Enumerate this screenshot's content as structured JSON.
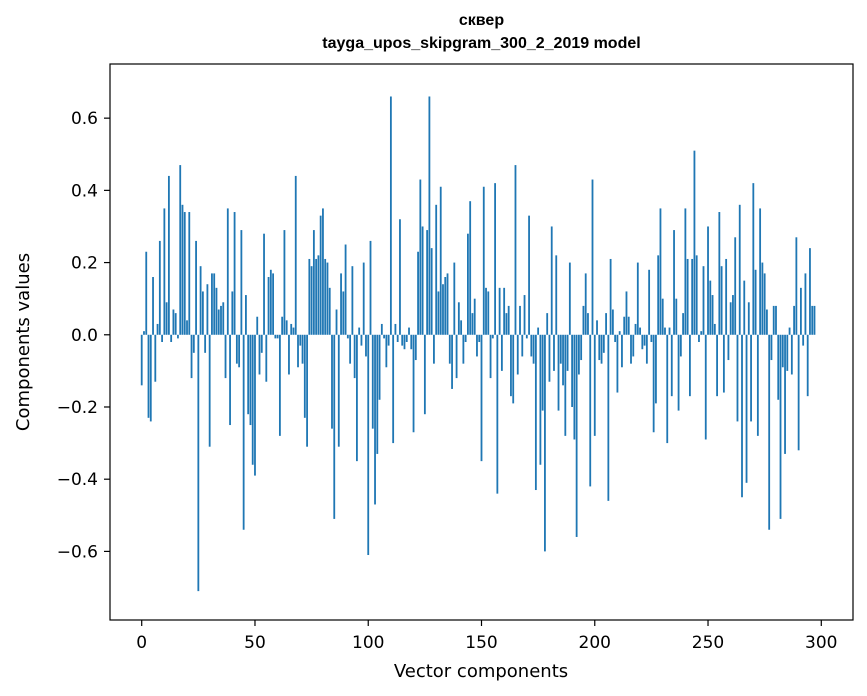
{
  "chart_data": {
    "type": "bar",
    "title": "сквер",
    "subtitle": "tayga_upos_skipgram_300_2_2019 model",
    "xlabel": "Vector components",
    "ylabel": "Components values",
    "xlim": [
      -14,
      314
    ],
    "ylim": [
      -0.79,
      0.75
    ],
    "xticks": [
      0,
      50,
      100,
      150,
      200,
      250,
      300
    ],
    "yticks": [
      -0.6,
      -0.4,
      -0.2,
      0.0,
      0.2,
      0.4,
      0.6
    ],
    "xtick_labels": [
      "0",
      "50",
      "100",
      "150",
      "200",
      "250",
      "300"
    ],
    "ytick_labels": [
      "−0.6",
      "−0.4",
      "−0.2",
      "0.0",
      "0.2",
      "0.4",
      "0.6"
    ],
    "grid": false,
    "legend": "none",
    "bar_color": "#1f77b4",
    "series": [
      {
        "values": [
          -0.14,
          0.01,
          0.23,
          -0.23,
          -0.24,
          0.16,
          -0.13,
          0.03,
          0.26,
          -0.02,
          0.35,
          0.09,
          0.44,
          -0.02,
          0.07,
          0.06,
          -0.01,
          0.47,
          0.36,
          0.34,
          0.04,
          0.34,
          -0.12,
          -0.05,
          0.26,
          -0.71,
          0.19,
          0.12,
          -0.05,
          0.14,
          -0.31,
          0.17,
          0.17,
          0.13,
          0.07,
          0.08,
          0.09,
          -0.12,
          0.35,
          -0.25,
          0.12,
          0.34,
          -0.08,
          -0.09,
          0.29,
          -0.54,
          0.11,
          -0.22,
          -0.25,
          -0.36,
          -0.39,
          0.05,
          -0.11,
          -0.05,
          0.28,
          -0.13,
          0.16,
          0.18,
          0.17,
          -0.01,
          -0.01,
          -0.28,
          0.05,
          0.29,
          0.04,
          -0.11,
          0.03,
          0.02,
          0.44,
          -0.09,
          -0.03,
          -0.08,
          -0.23,
          -0.31,
          0.21,
          0.19,
          0.29,
          0.21,
          0.22,
          0.33,
          0.35,
          0.21,
          0.2,
          0.13,
          -0.26,
          -0.51,
          0.07,
          -0.31,
          0.17,
          0.12,
          0.25,
          -0.01,
          -0.08,
          0.19,
          -0.12,
          -0.35,
          0.02,
          -0.03,
          0.2,
          -0.06,
          -0.61,
          0.26,
          -0.26,
          -0.47,
          -0.33,
          -0.18,
          0.03,
          -0.01,
          -0.09,
          -0.03,
          0.66,
          -0.3,
          0.03,
          -0.02,
          0.32,
          -0.03,
          -0.04,
          -0.02,
          0.02,
          -0.04,
          -0.27,
          -0.07,
          0.23,
          0.43,
          0.3,
          -0.22,
          0.29,
          0.66,
          0.24,
          -0.08,
          0.36,
          0.12,
          0.41,
          0.14,
          0.16,
          0.17,
          -0.08,
          -0.15,
          0.2,
          -0.12,
          0.09,
          0.04,
          -0.08,
          -0.02,
          0.28,
          0.37,
          0.06,
          0.1,
          -0.06,
          -0.02,
          -0.35,
          0.41,
          0.13,
          0.12,
          -0.12,
          -0.01,
          0.42,
          -0.44,
          0.13,
          -0.1,
          0.13,
          0.06,
          0.08,
          -0.17,
          -0.19,
          0.47,
          -0.11,
          0.08,
          -0.06,
          0.11,
          -0.01,
          0.33,
          -0.06,
          -0.08,
          -0.43,
          0.02,
          -0.36,
          -0.21,
          -0.6,
          0.06,
          -0.13,
          0.3,
          -0.1,
          0.22,
          -0.21,
          -0.08,
          -0.14,
          -0.28,
          -0.1,
          0.2,
          -0.2,
          -0.29,
          -0.56,
          -0.11,
          -0.07,
          0.08,
          0.17,
          0.06,
          -0.42,
          0.43,
          -0.28,
          0.04,
          -0.07,
          -0.08,
          -0.05,
          0.06,
          -0.46,
          0.21,
          0.07,
          -0.02,
          -0.16,
          0.01,
          -0.09,
          0.05,
          0.12,
          0.05,
          -0.08,
          -0.06,
          0.03,
          0.2,
          0.02,
          -0.04,
          -0.03,
          -0.08,
          0.18,
          -0.02,
          -0.27,
          -0.19,
          0.22,
          0.35,
          0.1,
          0.02,
          -0.3,
          0.02,
          -0.17,
          0.29,
          0.1,
          -0.21,
          -0.06,
          0.06,
          0.35,
          0.21,
          -0.17,
          0.21,
          0.51,
          0.22,
          -0.02,
          0.01,
          0.19,
          -0.29,
          0.3,
          0.15,
          0.11,
          0.03,
          -0.17,
          0.34,
          0.19,
          -0.16,
          0.21,
          -0.07,
          0.09,
          0.11,
          0.27,
          -0.24,
          0.36,
          -0.45,
          0.15,
          -0.41,
          0.09,
          -0.24,
          0.42,
          0.18,
          -0.28,
          0.35,
          0.2,
          0.17,
          0.07,
          -0.54,
          -0.07,
          0.08,
          0.08,
          -0.18,
          -0.51,
          -0.09,
          -0.33,
          -0.1,
          0.02,
          -0.11,
          0.08,
          0.27,
          -0.32,
          0.13,
          -0.03,
          0.17,
          -0.17,
          0.24,
          0.08,
          0.08
        ]
      }
    ]
  }
}
